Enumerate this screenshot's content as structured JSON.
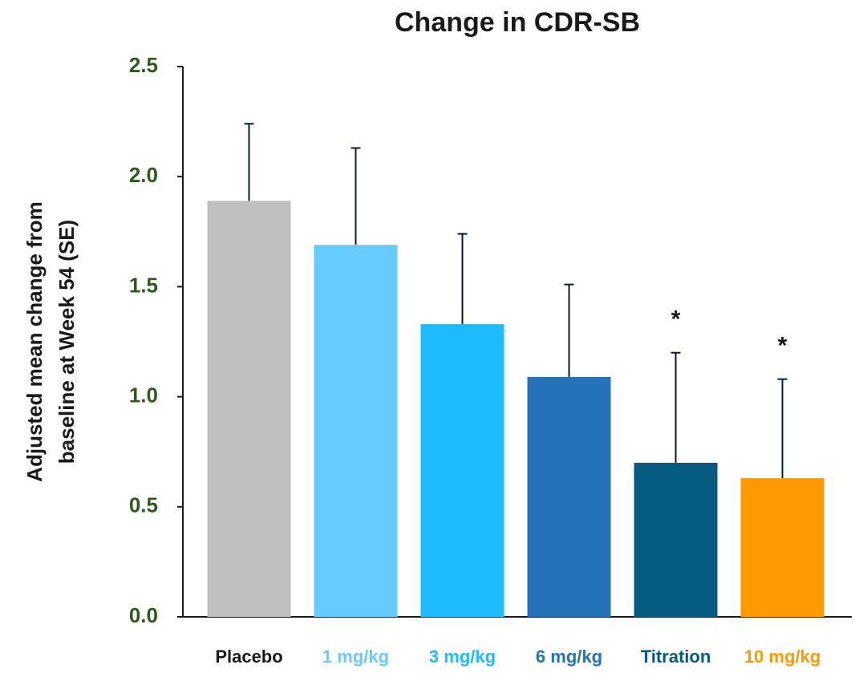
{
  "chart_data": {
    "type": "bar",
    "title": "Change in CDR-SB",
    "y_label_lines": [
      "Adjusted mean change from",
      "baseline at Week 54 (SE)"
    ],
    "categories": [
      "Placebo",
      "1 mg/kg",
      "3 mg/kg",
      "6 mg/kg",
      "Titration",
      "10 mg/kg"
    ],
    "values": [
      1.89,
      1.69,
      1.33,
      1.09,
      0.7,
      0.63
    ],
    "errors": [
      0.35,
      0.44,
      0.41,
      0.42,
      0.5,
      0.45
    ],
    "colors": [
      "#bfbfbf",
      "#66ccff",
      "#1fbbff",
      "#2473b8",
      "#055a80",
      "#ff9a00"
    ],
    "label_colors": [
      "#1a1a1a",
      "#66ccff",
      "#1fbbff",
      "#2473b8",
      "#055a80",
      "#ff9a00"
    ],
    "annotations": [
      null,
      null,
      null,
      null,
      "*",
      "*"
    ],
    "tick_label_color": "#2d5a1a",
    "ylim": [
      0,
      2.5
    ],
    "yticks": [
      {
        "value": 0,
        "label": "0.0"
      },
      {
        "value": 0.5,
        "label": "0.5"
      },
      {
        "value": 1,
        "label": "1.0"
      },
      {
        "value": 1.5,
        "label": "1.5"
      },
      {
        "value": 2,
        "label": "2.0"
      },
      {
        "value": 2.5,
        "label": "2.5"
      }
    ],
    "grid": false
  }
}
